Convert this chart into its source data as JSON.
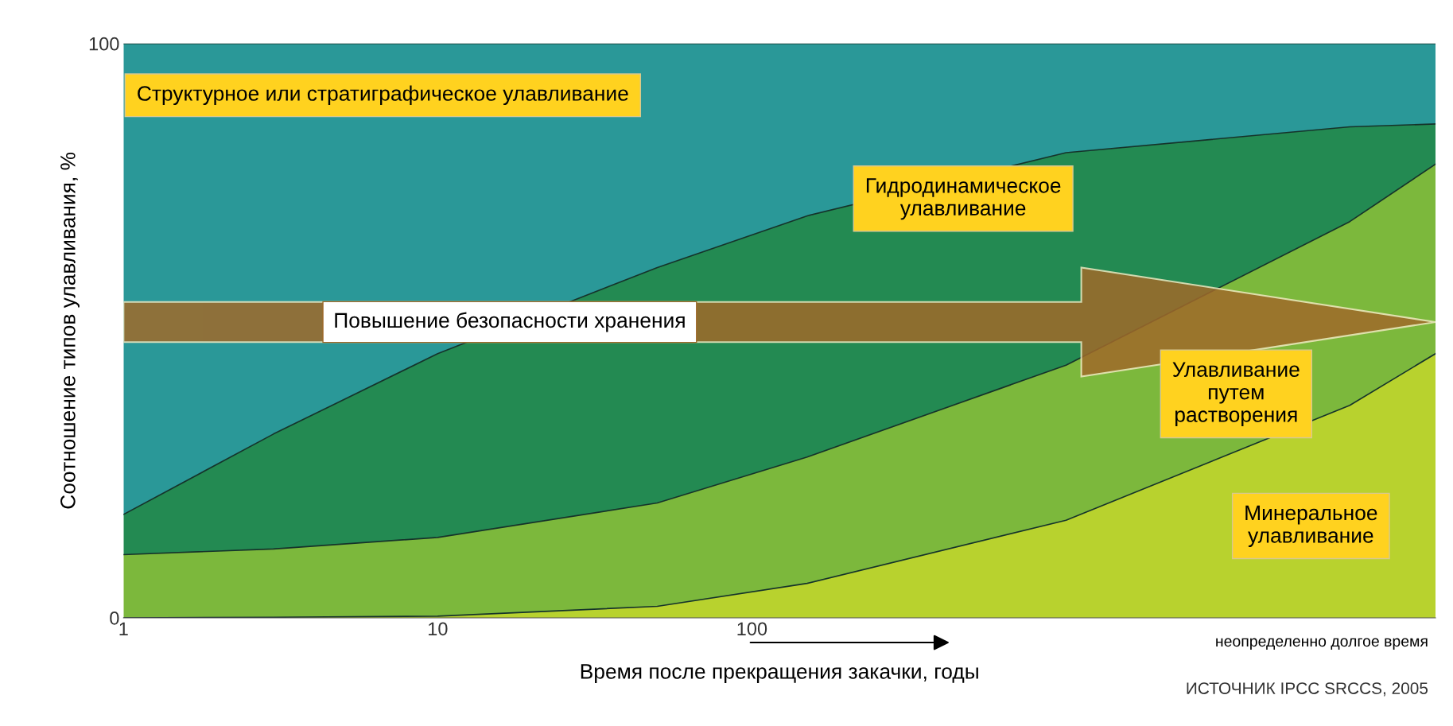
{
  "chart_data": {
    "type": "area",
    "stacked": true,
    "log": "x",
    "xlabel": "Время после прекращения закачки, годы",
    "ylabel": "Соотношение типов улавливания, %",
    "x": [
      1,
      3,
      10,
      50,
      150,
      1000,
      8000,
      15000
    ],
    "xlim": [
      1,
      15000
    ],
    "xticks": [
      1,
      10,
      100
    ],
    "ylim": [
      0,
      100
    ],
    "yticks": [
      0,
      100
    ],
    "grid": false,
    "legend": false,
    "series": [
      {
        "name": "Минеральное улавливание",
        "color": "#b8d22e",
        "values": [
          0,
          0.1,
          0.3,
          2,
          6,
          17,
          37,
          46
        ]
      },
      {
        "name": "Улавливание путем растворения",
        "color": "#7cb83c",
        "values": [
          11,
          11.9,
          13.7,
          18,
          22,
          27,
          32,
          33
        ]
      },
      {
        "name": "Гидродинамическое улавливание",
        "color": "#238a52",
        "values": [
          7,
          20,
          32,
          41,
          42,
          37,
          16.5,
          7
        ]
      },
      {
        "name": "Структурное или стратиграфическое улавливание",
        "color": "#2a9898",
        "values": [
          82,
          68,
          54,
          39,
          30,
          19,
          14.5,
          14
        ]
      }
    ],
    "annotations": [
      "Повышение безопасности хранения",
      "неопределенно долгое время",
      "ИСТОЧНИК IPCC SRCCS, 2005"
    ]
  }
}
